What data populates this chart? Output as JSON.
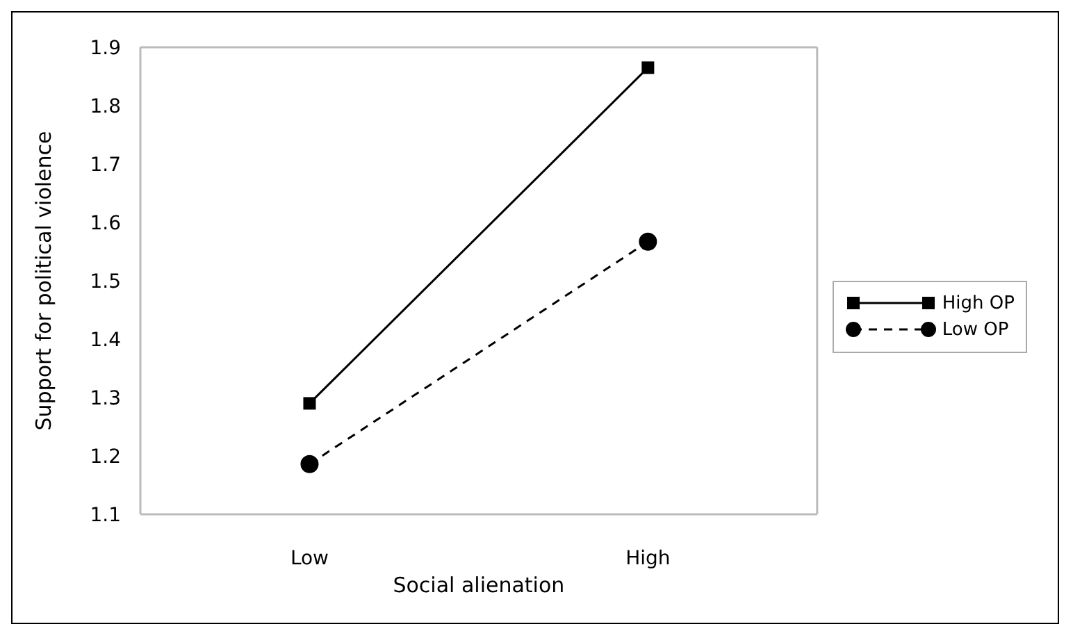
{
  "chart_data": {
    "type": "line",
    "xlabel": "Social alienation",
    "ylabel": "Support for political violence",
    "categories": [
      "Low",
      "High"
    ],
    "series": [
      {
        "name": "High OP",
        "color": "#000000",
        "values": [
          1.29,
          1.865
        ],
        "marker": "square",
        "line_style": "solid"
      },
      {
        "name": "Low OP",
        "color": "#000000",
        "values": [
          1.186,
          1.567
        ],
        "marker": "circle",
        "line_style": "dashed"
      }
    ],
    "ylim": [
      1.1,
      1.9
    ],
    "yticks": [
      1.1,
      1.2,
      1.3,
      1.4,
      1.5,
      1.6,
      1.7,
      1.8,
      1.9
    ],
    "grid": false,
    "legend": "right"
  }
}
